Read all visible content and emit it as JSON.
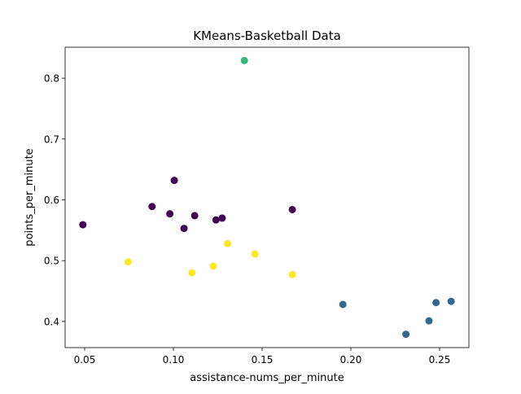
{
  "chart_data": {
    "type": "scatter",
    "title": "KMeans-Basketball Data",
    "xlabel": "assistance-nums_per_minute",
    "ylabel": "points_per_minute",
    "xlim": [
      0.039,
      0.2665
    ],
    "ylim": [
      0.357,
      0.851
    ],
    "xticks": [
      0.05,
      0.1,
      0.15,
      0.2,
      0.25
    ],
    "xtick_labels": [
      "0.05",
      "0.10",
      "0.15",
      "0.20",
      "0.25"
    ],
    "yticks": [
      0.4,
      0.5,
      0.6,
      0.7,
      0.8
    ],
    "ytick_labels": [
      "0.4",
      "0.5",
      "0.6",
      "0.7",
      "0.8"
    ],
    "grid": false,
    "legend": "none",
    "cluster_colors": {
      "0": "#440154",
      "1": "#31688e",
      "2": "#35b779",
      "3": "#fde725"
    },
    "points": [
      {
        "x": 0.049,
        "y": 0.559,
        "cluster": 0
      },
      {
        "x": 0.088,
        "y": 0.589,
        "cluster": 0
      },
      {
        "x": 0.098,
        "y": 0.577,
        "cluster": 0
      },
      {
        "x": 0.1005,
        "y": 0.632,
        "cluster": 0
      },
      {
        "x": 0.106,
        "y": 0.553,
        "cluster": 0
      },
      {
        "x": 0.112,
        "y": 0.574,
        "cluster": 0
      },
      {
        "x": 0.124,
        "y": 0.567,
        "cluster": 0
      },
      {
        "x": 0.1275,
        "y": 0.57,
        "cluster": 0
      },
      {
        "x": 0.167,
        "y": 0.584,
        "cluster": 0
      },
      {
        "x": 0.1955,
        "y": 0.428,
        "cluster": 1
      },
      {
        "x": 0.231,
        "y": 0.379,
        "cluster": 1
      },
      {
        "x": 0.244,
        "y": 0.401,
        "cluster": 1
      },
      {
        "x": 0.248,
        "y": 0.431,
        "cluster": 1
      },
      {
        "x": 0.2565,
        "y": 0.433,
        "cluster": 1
      },
      {
        "x": 0.14,
        "y": 0.829,
        "cluster": 2
      },
      {
        "x": 0.0745,
        "y": 0.498,
        "cluster": 3
      },
      {
        "x": 0.1105,
        "y": 0.48,
        "cluster": 3
      },
      {
        "x": 0.1225,
        "y": 0.491,
        "cluster": 3
      },
      {
        "x": 0.1305,
        "y": 0.528,
        "cluster": 3
      },
      {
        "x": 0.146,
        "y": 0.511,
        "cluster": 3
      },
      {
        "x": 0.167,
        "y": 0.477,
        "cluster": 3
      }
    ]
  }
}
